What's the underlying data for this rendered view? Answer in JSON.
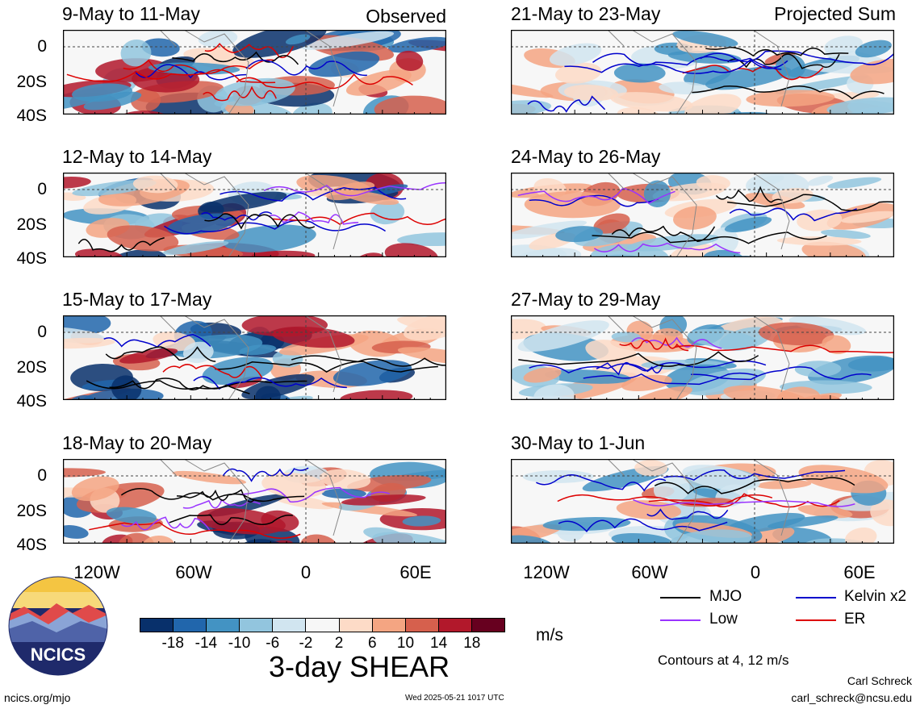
{
  "panels": [
    {
      "id": "p1",
      "title": "9-May to 11-May",
      "corner": "Observed",
      "side": "left",
      "row": 0
    },
    {
      "id": "p2",
      "title": "12-May to 14-May",
      "corner": "",
      "side": "left",
      "row": 1
    },
    {
      "id": "p3",
      "title": "15-May to 17-May",
      "corner": "",
      "side": "left",
      "row": 2
    },
    {
      "id": "p4",
      "title": "18-May to 20-May",
      "corner": "",
      "side": "left",
      "row": 3
    },
    {
      "id": "p5",
      "title": "21-May to 23-May",
      "corner": "Projected Sum",
      "side": "right",
      "row": 0
    },
    {
      "id": "p6",
      "title": "24-May to 26-May",
      "corner": "",
      "side": "right",
      "row": 1
    },
    {
      "id": "p7",
      "title": "27-May to 29-May",
      "corner": "",
      "side": "right",
      "row": 2
    },
    {
      "id": "p8",
      "title": "30-May to 1-Jun",
      "corner": "",
      "side": "right",
      "row": 3
    }
  ],
  "y_ticks": [
    "0",
    "20S",
    "40S"
  ],
  "x_ticks": [
    "120W",
    "60W",
    "0",
    "60E"
  ],
  "colorbar": {
    "ticks": [
      "-18",
      "-14",
      "-10",
      "-6",
      "-2",
      "2",
      "6",
      "10",
      "14",
      "18"
    ],
    "colors": [
      "#08306b",
      "#2166ac",
      "#4393c3",
      "#92c5de",
      "#d1e5f0",
      "#f7f7f7",
      "#fddbc7",
      "#f4a582",
      "#d6604d",
      "#b2182b",
      "#67001f"
    ],
    "unit": "m/s",
    "title": "3-day SHEAR"
  },
  "legend": {
    "items": [
      {
        "label": "MJO",
        "color": "#000000"
      },
      {
        "label": "Kelvin x2",
        "color": "#0000cc"
      },
      {
        "label": "Low",
        "color": "#9933ff"
      },
      {
        "label": "ER",
        "color": "#dd0000"
      }
    ],
    "contours_note": "Contours at 4, 12 m/s"
  },
  "footer": {
    "logo_text": "NCICS",
    "url": "ncics.org/mjo",
    "timestamp": "Wed 2025-05-21 1017 UTC",
    "author": "Carl Schreck",
    "email": "carl_schreck@ncsu.edu"
  }
}
